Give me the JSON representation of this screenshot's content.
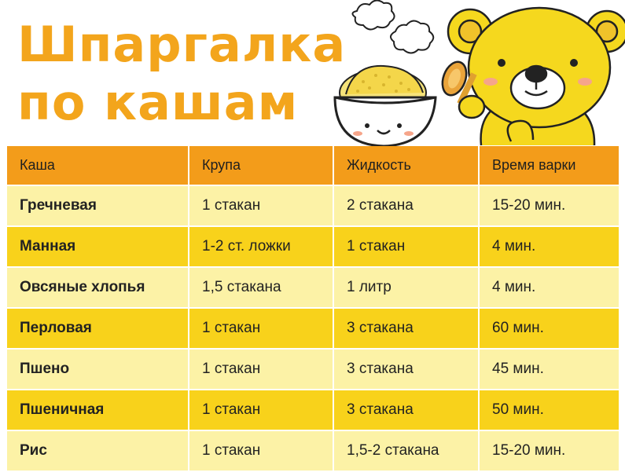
{
  "title": {
    "line1": "Шпаргалка",
    "line2": "по кашам"
  },
  "illustration": {
    "elements": [
      "bear",
      "porridge-bowl",
      "spoon",
      "steam-cloud"
    ]
  },
  "colors": {
    "title": "#f3a51c",
    "header": "#f39c1a",
    "row_light": "#fcf2a6",
    "row_dark": "#f8d21b",
    "bear": "#f5d81e"
  },
  "table": {
    "headers": [
      "Каша",
      "Крупа",
      "Жидкость",
      "Время варки"
    ],
    "rows": [
      {
        "name": "Гречневая",
        "grain": "1 стакан",
        "liquid": "2 стакана",
        "time": "15-20 мин."
      },
      {
        "name": "Манная",
        "grain": "1-2 ст. ложки",
        "liquid": "1 стакан",
        "time": "4 мин."
      },
      {
        "name": "Овсяные хлопья",
        "grain": "1,5 стакана",
        "liquid": "1 литр",
        "time": "4 мин."
      },
      {
        "name": "Перловая",
        "grain": "1 стакан",
        "liquid": "3 стакана",
        "time": "60 мин."
      },
      {
        "name": "Пшено",
        "grain": "1 стакан",
        "liquid": "3 стакана",
        "time": "45 мин."
      },
      {
        "name": "Пшеничная",
        "grain": "1 стакан",
        "liquid": "3 стакана",
        "time": "50 мин."
      },
      {
        "name": "Рис",
        "grain": "1 стакан",
        "liquid": "1,5-2 стакана",
        "time": "15-20 мин."
      }
    ]
  }
}
